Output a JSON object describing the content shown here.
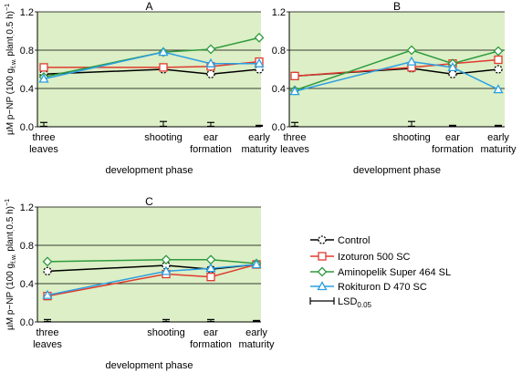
{
  "colors": {
    "plot_bg": "#dcefc6",
    "grid": "#000000",
    "Control": "#000000",
    "Izoturon 500 SC": "#e03a2f",
    "Aminopelik Super 464 SL": "#2e9a3c",
    "Rokituron D 470 SC": "#2c9fe0",
    "LSD": "#000000"
  },
  "legend": {
    "items": [
      {
        "label": "Control",
        "marker": "circle-dashed"
      },
      {
        "label": "Izoturon 500 SC",
        "marker": "square"
      },
      {
        "label": "Aminopelik Super 464 SL",
        "marker": "diamond"
      },
      {
        "label": "Rokituron D 470 SC",
        "marker": "triangle"
      }
    ],
    "lsd_label": "LSD",
    "lsd_sub": "0.05"
  },
  "chart_data": [
    {
      "type": "line",
      "title": "A",
      "xlabel": "development phase",
      "ylabel_main": "µM p−NP (100 g",
      "ylabel_sub": "f.w.",
      "ylabel_mid": " plant",
      "ylabel_sub2": "·",
      "ylabel_end": "0.5 h)",
      "ylabel_sup": "−1",
      "categories": [
        [
          "three",
          "leaves"
        ],
        [
          "shooting"
        ],
        [
          "ear",
          "formation"
        ],
        [
          "early",
          "maturity"
        ]
      ],
      "yticks": [
        "0.0",
        "0.4",
        "0.8",
        "1.2"
      ],
      "ylim": [
        0,
        1.2
      ],
      "grid": true,
      "series": [
        {
          "name": "Control",
          "values": [
            0.55,
            0.6,
            0.55,
            0.6
          ]
        },
        {
          "name": "Izoturon 500 SC",
          "values": [
            0.62,
            0.62,
            0.63,
            0.68
          ]
        },
        {
          "name": "Aminopelik Super 464 SL",
          "values": [
            0.52,
            0.78,
            0.81,
            0.93
          ]
        },
        {
          "name": "Rokituron D 470 SC",
          "values": [
            0.5,
            0.78,
            0.66,
            0.66
          ]
        }
      ],
      "lsd": [
        0.04,
        0.05,
        0.04,
        0.01
      ]
    },
    {
      "type": "line",
      "title": "B",
      "xlabel": "development phase",
      "categories": [
        [
          "three",
          "leaves"
        ],
        [
          "shooting"
        ],
        [
          "ear",
          "formation"
        ],
        [
          "early",
          "maturity"
        ]
      ],
      "yticks": [
        "0.0",
        "0.4",
        "0.8",
        "1.2"
      ],
      "ylim": [
        0,
        1.2
      ],
      "grid": true,
      "series": [
        {
          "name": "Control",
          "values": [
            0.53,
            0.61,
            0.55,
            0.6
          ]
        },
        {
          "name": "Izoturon 500 SC",
          "values": [
            0.53,
            0.62,
            0.66,
            0.7
          ]
        },
        {
          "name": "Aminopelik Super 464 SL",
          "values": [
            0.38,
            0.8,
            0.66,
            0.79
          ]
        },
        {
          "name": "Rokituron D 470 SC",
          "values": [
            0.37,
            0.68,
            0.62,
            0.39
          ]
        }
      ],
      "lsd": [
        0.04,
        0.05,
        0.01,
        0.01
      ]
    },
    {
      "type": "line",
      "title": "C",
      "xlabel": "development phase",
      "ylabel_main": "µM p−NP (100 g",
      "ylabel_sub": "f.w.",
      "ylabel_mid": " plant",
      "ylabel_sub2": "·",
      "ylabel_end": "0.5 h)",
      "ylabel_sup": "−1",
      "categories": [
        [
          "three",
          "leaves"
        ],
        [
          "shooting"
        ],
        [
          "ear",
          "formation"
        ],
        [
          "early",
          "maturity"
        ]
      ],
      "yticks": [
        "0.0",
        "0.4",
        "0.8",
        "1.2"
      ],
      "ylim": [
        0,
        1.2
      ],
      "grid": true,
      "series": [
        {
          "name": "Control",
          "values": [
            0.53,
            0.59,
            0.55,
            0.6
          ]
        },
        {
          "name": "Izoturon 500 SC",
          "values": [
            0.27,
            0.5,
            0.47,
            0.6
          ]
        },
        {
          "name": "Aminopelik Super 464 SL",
          "values": [
            0.63,
            0.65,
            0.65,
            0.61
          ]
        },
        {
          "name": "Rokituron D 470 SC",
          "values": [
            0.28,
            0.53,
            0.56,
            0.6
          ]
        }
      ],
      "lsd": [
        0.02,
        0.02,
        0.02,
        0.01
      ]
    }
  ]
}
